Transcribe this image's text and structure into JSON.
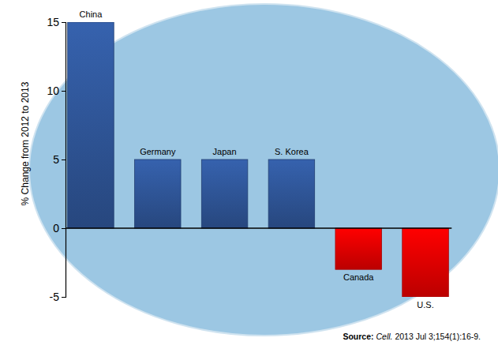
{
  "chart_data": {
    "type": "bar",
    "y_label": "% Change from 2012 to 2013",
    "categories": [
      "China",
      "Germany",
      "Japan",
      "S. Korea",
      "Canada",
      "U.S."
    ],
    "values": [
      15,
      5,
      5,
      5,
      -3,
      -5
    ],
    "colors": [
      "#2f5597",
      "#2f5597",
      "#2f5597",
      "#2f5597",
      "#e00000",
      "#e00000"
    ],
    "ylim": [
      -5,
      15
    ],
    "yticks": [
      -5,
      0,
      5,
      10,
      15
    ],
    "grid": false,
    "data_labels": false,
    "source": "Source: Cell. 2013 Jul 3;154(1):16-9."
  }
}
